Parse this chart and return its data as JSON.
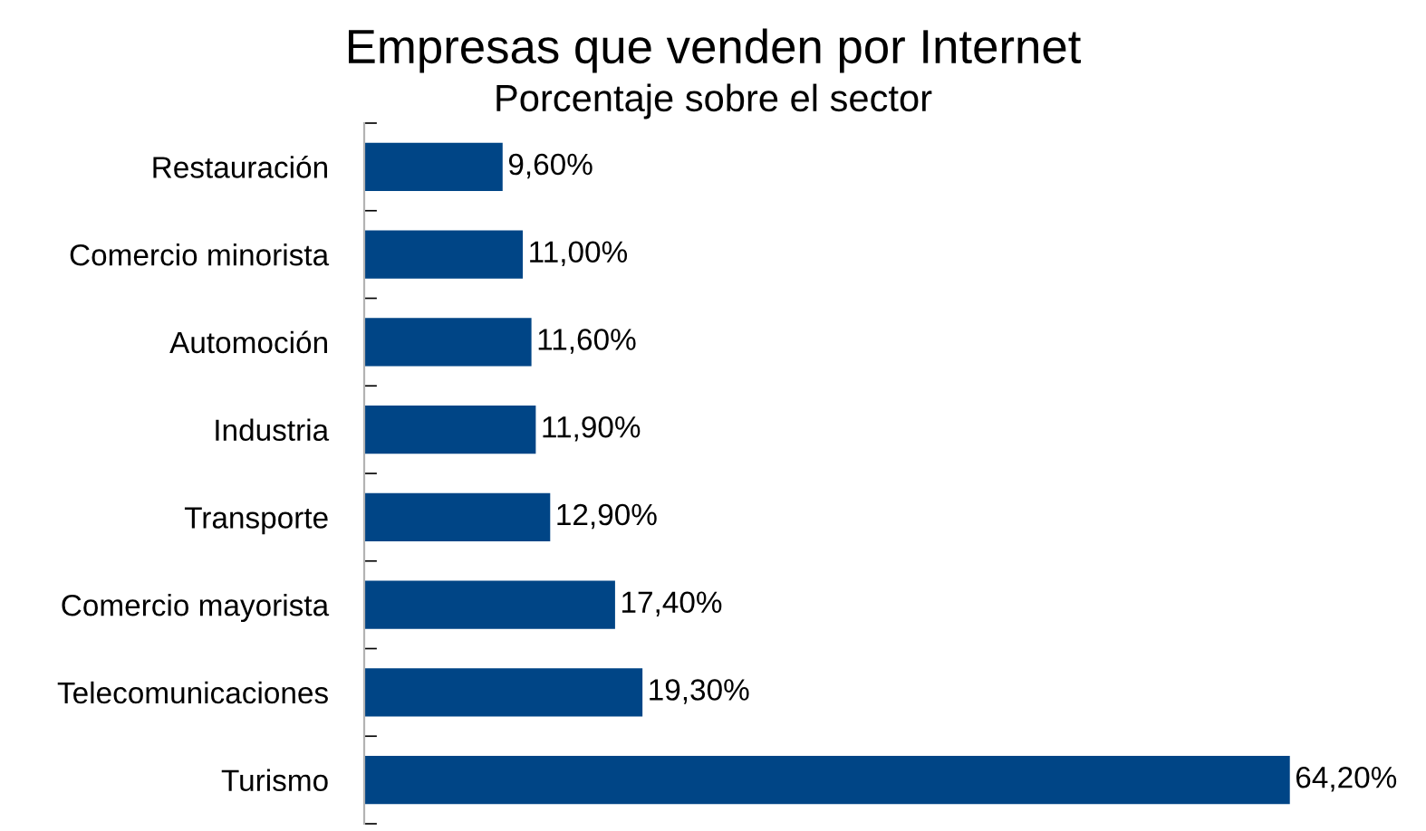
{
  "chart_data": {
    "type": "bar",
    "orientation": "horizontal",
    "title": "Empresas que venden por Internet",
    "subtitle": "Porcentaje sobre el sector",
    "categories": [
      "Restauración",
      "Comercio minorista",
      "Automoción",
      "Industria",
      "Transporte",
      "Comercio mayorista",
      "Telecomunicaciones",
      "Turismo"
    ],
    "values": [
      9.6,
      11.0,
      11.6,
      11.9,
      12.9,
      17.4,
      19.3,
      64.2
    ],
    "value_labels": [
      "9,60%",
      "11,00%",
      "11,60%",
      "11,90%",
      "12,90%",
      "17,40%",
      "19,30%",
      "64,20%"
    ],
    "color": "#004586",
    "grid": false,
    "legend": false
  }
}
